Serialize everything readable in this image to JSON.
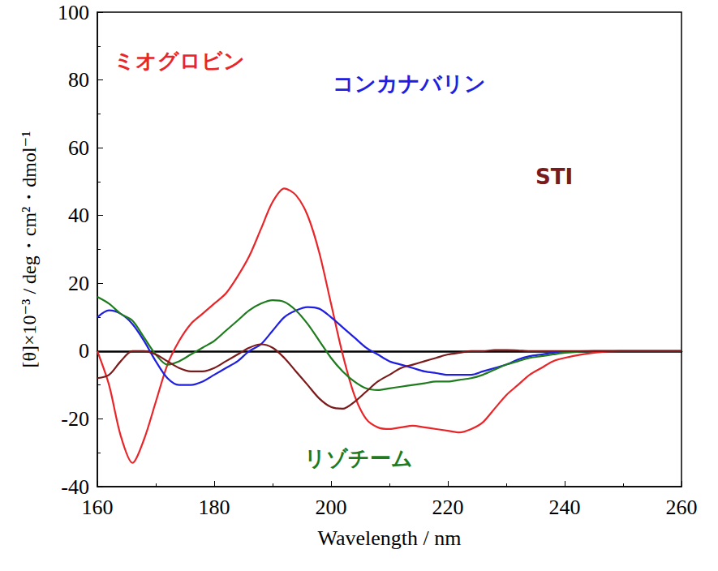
{
  "chart_data": {
    "type": "line",
    "x_label": "Wavelength / nm",
    "y_label": "[θ]×10⁻³ / deg・cm²・dmol⁻¹",
    "xlim": [
      160,
      260
    ],
    "xticks": [
      160,
      180,
      200,
      220,
      240,
      260
    ],
    "ylim": [
      -40,
      100
    ],
    "yticks": [
      -40,
      -20,
      0,
      20,
      40,
      60,
      80,
      100
    ],
    "grid": false,
    "x": [
      160,
      162,
      164,
      166,
      168,
      170,
      172,
      174,
      176,
      178,
      180,
      182,
      184,
      186,
      188,
      190,
      192,
      194,
      196,
      198,
      200,
      202,
      204,
      206,
      208,
      210,
      212,
      214,
      216,
      218,
      220,
      222,
      224,
      226,
      228,
      230,
      232,
      234,
      236,
      238,
      240,
      245,
      250,
      255,
      260
    ],
    "series": [
      {
        "name": "ミオグロビン",
        "color": "#e8262a",
        "values": [
          0,
          -10,
          -25,
          -33,
          -26,
          -15,
          -4,
          3,
          8,
          11,
          14,
          17,
          22,
          28,
          36,
          44,
          48,
          46,
          40,
          29,
          14,
          -1,
          -13,
          -20,
          -22.5,
          -23,
          -22.5,
          -22,
          -22.5,
          -23,
          -23.5,
          -24,
          -23,
          -21,
          -17,
          -13,
          -10,
          -7,
          -5,
          -3,
          -2,
          -0.5,
          0,
          0,
          0
        ]
      },
      {
        "name": "コンカナバリン",
        "color": "#1f1fe0",
        "values": [
          10,
          12,
          11,
          8,
          3,
          -3,
          -8,
          -10,
          -10,
          -9,
          -7,
          -5,
          -3,
          0,
          2,
          6,
          10,
          12,
          13,
          12.5,
          10,
          7,
          4,
          1,
          -1,
          -3,
          -4,
          -5,
          -6,
          -6.5,
          -7,
          -7,
          -7,
          -6,
          -5,
          -4,
          -2.5,
          -1.5,
          -1,
          -0.5,
          -0.2,
          0,
          0,
          0,
          0
        ]
      },
      {
        "name": "リゾチーム",
        "color": "#1e7b1e",
        "values": [
          16,
          14,
          11,
          9,
          4,
          -1,
          -4,
          -3,
          -1,
          1,
          3,
          6,
          9,
          12,
          14,
          15,
          14.5,
          12,
          8,
          3,
          -2,
          -6,
          -9,
          -11,
          -11.5,
          -11,
          -10.5,
          -10,
          -9.5,
          -9,
          -9,
          -8.5,
          -8,
          -7,
          -5.5,
          -4,
          -3,
          -2,
          -1.5,
          -1,
          -0.5,
          0,
          0,
          0,
          0
        ]
      },
      {
        "name": "STI",
        "color": "#7a1a1a",
        "values": [
          -8,
          -7,
          -3,
          0,
          0,
          -1,
          -3,
          -5,
          -6,
          -6,
          -5,
          -3,
          -1,
          1,
          2,
          1,
          -2,
          -6,
          -10,
          -14,
          -16.5,
          -17,
          -15,
          -12,
          -9,
          -7,
          -5,
          -4,
          -3,
          -2,
          -1,
          -0.5,
          0,
          0,
          0.3,
          0.3,
          0.2,
          0,
          0,
          0,
          0,
          0,
          0,
          0,
          0
        ]
      }
    ]
  }
}
